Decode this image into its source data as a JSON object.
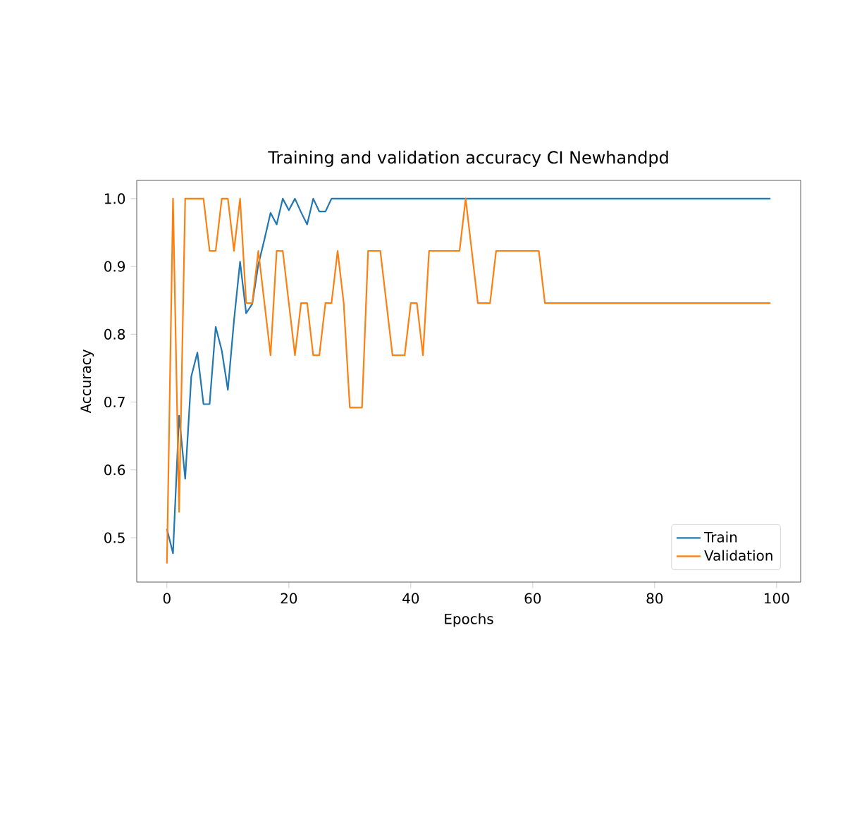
{
  "chart_data": {
    "type": "line",
    "title": "Training and validation accuracy CI Newhandpd",
    "xlabel": "Epochs",
    "ylabel": "Accuracy",
    "x": [
      0,
      1,
      2,
      3,
      4,
      5,
      6,
      7,
      8,
      9,
      10,
      11,
      12,
      13,
      14,
      15,
      16,
      17,
      18,
      19,
      20,
      21,
      22,
      23,
      24,
      25,
      26,
      27,
      28,
      29,
      30,
      31,
      32,
      33,
      34,
      35,
      36,
      37,
      38,
      39,
      40,
      41,
      42,
      43,
      44,
      45,
      46,
      47,
      48,
      49,
      50,
      51,
      52,
      53,
      54,
      55,
      56,
      57,
      58,
      59,
      60,
      61,
      62,
      63,
      64,
      65,
      66,
      67,
      68,
      69,
      70,
      71,
      72,
      73,
      74,
      75,
      76,
      77,
      78,
      79,
      80,
      81,
      82,
      83,
      84,
      85,
      86,
      87,
      88,
      89,
      90,
      91,
      92,
      93,
      94,
      95,
      96,
      97,
      98,
      99
    ],
    "series": [
      {
        "name": "Train",
        "color": "#1f77b4",
        "values": [
          0.513,
          0.477,
          0.68,
          0.587,
          0.738,
          0.773,
          0.697,
          0.697,
          0.811,
          0.776,
          0.718,
          0.82,
          0.907,
          0.831,
          0.845,
          0.903,
          0.94,
          0.979,
          0.962,
          1.0,
          0.983,
          1.0,
          0.98,
          0.962,
          1.0,
          0.981,
          0.981,
          1.0,
          1.0,
          1.0,
          1.0,
          1.0,
          1.0,
          1.0,
          1.0,
          1.0,
          1.0,
          1.0,
          1.0,
          1.0,
          1.0,
          1.0,
          1.0,
          1.0,
          1.0,
          1.0,
          1.0,
          1.0,
          1.0,
          1.0,
          1.0,
          1.0,
          1.0,
          1.0,
          1.0,
          1.0,
          1.0,
          1.0,
          1.0,
          1.0,
          1.0,
          1.0,
          1.0,
          1.0,
          1.0,
          1.0,
          1.0,
          1.0,
          1.0,
          1.0,
          1.0,
          1.0,
          1.0,
          1.0,
          1.0,
          1.0,
          1.0,
          1.0,
          1.0,
          1.0,
          1.0,
          1.0,
          1.0,
          1.0,
          1.0,
          1.0,
          1.0,
          1.0,
          1.0,
          1.0,
          1.0,
          1.0,
          1.0,
          1.0,
          1.0,
          1.0,
          1.0,
          1.0,
          1.0,
          1.0
        ]
      },
      {
        "name": "Validation",
        "color": "#ff7f0e",
        "values": [
          0.462,
          1.0,
          0.538,
          1.0,
          1.0,
          1.0,
          1.0,
          0.923,
          0.923,
          1.0,
          1.0,
          0.923,
          1.0,
          0.846,
          0.846,
          0.923,
          0.846,
          0.769,
          0.923,
          0.923,
          0.846,
          0.769,
          0.846,
          0.846,
          0.769,
          0.769,
          0.846,
          0.846,
          0.923,
          0.846,
          0.692,
          0.692,
          0.692,
          0.923,
          0.923,
          0.923,
          0.846,
          0.769,
          0.769,
          0.769,
          0.846,
          0.846,
          0.769,
          0.923,
          0.923,
          0.923,
          0.923,
          0.923,
          0.923,
          1.0,
          0.923,
          0.846,
          0.846,
          0.846,
          0.923,
          0.923,
          0.923,
          0.923,
          0.923,
          0.923,
          0.923,
          0.923,
          0.846,
          0.846,
          0.846,
          0.846,
          0.846,
          0.846,
          0.846,
          0.846,
          0.846,
          0.846,
          0.846,
          0.846,
          0.846,
          0.846,
          0.846,
          0.846,
          0.846,
          0.846,
          0.846,
          0.846,
          0.846,
          0.846,
          0.846,
          0.846,
          0.846,
          0.846,
          0.846,
          0.846,
          0.846,
          0.846,
          0.846,
          0.846,
          0.846,
          0.846,
          0.846,
          0.846,
          0.846,
          0.846
        ]
      }
    ],
    "xlim": [
      -4.95,
      103.95
    ],
    "ylim": [
      0.4346,
      1.0269
    ],
    "xticks": [
      0,
      20,
      40,
      60,
      80,
      100
    ],
    "yticks": [
      {
        "value": 0.5,
        "label": "0.5"
      },
      {
        "value": 0.6,
        "label": "0.6"
      },
      {
        "value": 0.7,
        "label": "0.7"
      },
      {
        "value": 0.8,
        "label": "0.8"
      },
      {
        "value": 0.9,
        "label": "0.9"
      },
      {
        "value": 1.0,
        "label": "1.0"
      }
    ],
    "legend": "bottom right",
    "grid": false,
    "marker": "none",
    "line_style": "solid"
  }
}
